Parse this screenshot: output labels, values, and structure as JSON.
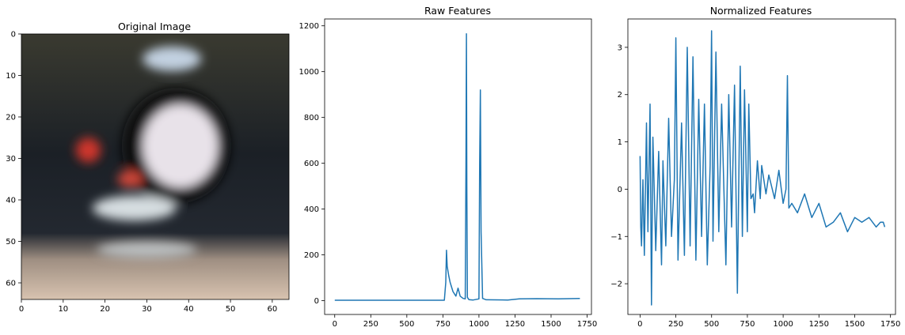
{
  "chart_data": [
    {
      "type": "image",
      "title": "Original Image",
      "xlabel": "",
      "ylabel": "",
      "xlim": [
        0,
        64
      ],
      "ylim": [
        64,
        0
      ],
      "xticks": [
        0,
        10,
        20,
        30,
        40,
        50,
        60
      ],
      "yticks": [
        0,
        10,
        20,
        30,
        40,
        50,
        60
      ],
      "image_blobs": [
        {
          "cx": 38,
          "cy": 27,
          "rx": 9,
          "ry": 10,
          "color": "#f4eef6"
        },
        {
          "cx": 37,
          "cy": 27,
          "rx": 13,
          "ry": 14,
          "color": "#0a0c10"
        },
        {
          "cx": 27,
          "cy": 42,
          "rx": 10,
          "ry": 3,
          "color": "#dfe7ea"
        },
        {
          "cx": 16,
          "cy": 28,
          "rx": 3,
          "ry": 3,
          "color": "#d6362c"
        },
        {
          "cx": 26,
          "cy": 35,
          "rx": 3,
          "ry": 2,
          "color": "#d84a3c"
        },
        {
          "cx": 36,
          "cy": 6,
          "rx": 7,
          "ry": 3,
          "color": "#c9d9ea"
        },
        {
          "cx": 30,
          "cy": 52,
          "rx": 12,
          "ry": 2,
          "color": "#bfc3c4"
        }
      ]
    },
    {
      "type": "line",
      "title": "Raw Features",
      "xlabel": "",
      "ylabel": "",
      "xlim": [
        -70,
        1780
      ],
      "ylim": [
        -60,
        1230
      ],
      "xticks": [
        0,
        250,
        500,
        750,
        1000,
        1250,
        1500,
        1750
      ],
      "yticks": [
        0,
        200,
        400,
        600,
        800,
        1000,
        1200
      ],
      "color": "#1f77b4",
      "x": [
        0,
        300,
        600,
        760,
        770,
        775,
        780,
        790,
        800,
        820,
        840,
        855,
        870,
        890,
        905,
        910,
        913,
        916,
        920,
        930,
        960,
        1000,
        1005,
        1010,
        1015,
        1025,
        1050,
        1200,
        1280,
        1400,
        1550,
        1700
      ],
      "y": [
        2,
        2,
        2,
        2,
        80,
        220,
        150,
        110,
        80,
        40,
        20,
        55,
        20,
        10,
        8,
        600,
        1165,
        500,
        15,
        5,
        3,
        8,
        600,
        920,
        300,
        10,
        4,
        3,
        8,
        9,
        8,
        10
      ]
    },
    {
      "type": "line",
      "title": "Normalized Features",
      "xlabel": "",
      "ylabel": "",
      "xlim": [
        -85,
        1785
      ],
      "ylim": [
        -2.65,
        3.6
      ],
      "xticks": [
        0,
        250,
        500,
        750,
        1000,
        1250,
        1500,
        1750
      ],
      "yticks": [
        -2,
        -1,
        0,
        1,
        2,
        3
      ],
      "color": "#1f77b4",
      "x": [
        0,
        5,
        10,
        20,
        30,
        45,
        55,
        70,
        80,
        90,
        110,
        130,
        150,
        160,
        180,
        200,
        220,
        240,
        250,
        265,
        290,
        310,
        330,
        350,
        370,
        390,
        410,
        430,
        450,
        470,
        490,
        500,
        510,
        530,
        550,
        570,
        600,
        620,
        640,
        660,
        680,
        700,
        715,
        730,
        750,
        760,
        775,
        790,
        800,
        820,
        840,
        850,
        880,
        900,
        940,
        970,
        1000,
        1020,
        1030,
        1040,
        1060,
        1100,
        1150,
        1180,
        1200,
        1250,
        1300,
        1350,
        1400,
        1450,
        1500,
        1550,
        1600,
        1650,
        1680,
        1700,
        1710
      ],
      "y": [
        0.7,
        -0.8,
        -1.2,
        0.2,
        -1.4,
        1.4,
        -0.9,
        1.8,
        -2.45,
        1.1,
        -1.3,
        0.8,
        -1.6,
        0.6,
        -1.2,
        1.5,
        -1.0,
        0.2,
        3.2,
        -1.5,
        1.4,
        -1.4,
        3.0,
        -1.2,
        2.8,
        -1.5,
        1.9,
        -1.0,
        1.8,
        -1.6,
        0.5,
        3.35,
        -1.1,
        2.9,
        -0.9,
        1.8,
        -1.6,
        2.0,
        -0.8,
        2.2,
        -2.2,
        2.6,
        -1.0,
        2.1,
        -0.9,
        1.8,
        -0.2,
        -0.1,
        -0.5,
        0.6,
        -0.2,
        0.5,
        -0.1,
        0.3,
        -0.2,
        0.4,
        -0.3,
        0.0,
        2.4,
        -0.4,
        -0.3,
        -0.5,
        -0.1,
        -0.4,
        -0.6,
        -0.3,
        -0.8,
        -0.7,
        -0.5,
        -0.9,
        -0.6,
        -0.7,
        -0.6,
        -0.8,
        -0.7,
        -0.7,
        -0.8
      ]
    }
  ]
}
